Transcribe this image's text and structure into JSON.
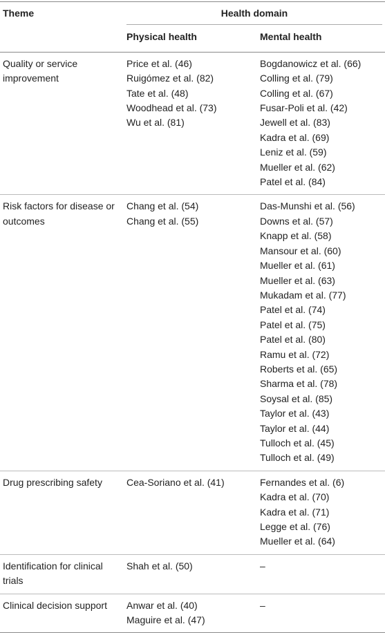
{
  "header": {
    "theme": "Theme",
    "domain": "Health domain",
    "columns": [
      "Physical health",
      "Mental health"
    ]
  },
  "rows": [
    {
      "theme": "Quality or service improvement",
      "physical": [
        "Price et al. (46)",
        "Ruigómez et al. (82)",
        "Tate et al. (48)",
        "Woodhead et al. (73)",
        "Wu et al. (81)"
      ],
      "mental": [
        "Bogdanowicz et al. (66)",
        "Colling et al. (79)",
        "Colling et al. (67)",
        "Fusar-Poli et al. (42)",
        "Jewell et al. (83)",
        "Kadra et al. (69)",
        "Leniz et al. (59)",
        "Mueller et al. (62)",
        "Patel et al. (84)"
      ]
    },
    {
      "theme": "Risk factors for disease or outcomes",
      "physical": [
        "Chang et al. (54)",
        "Chang et al. (55)"
      ],
      "mental": [
        "Das-Munshi et al. (56)",
        "Downs et al. (57)",
        "Knapp et al. (58)",
        "Mansour et al. (60)",
        "Mueller et al. (61)",
        "Mueller et al. (63)",
        "Mukadam et al. (77)",
        "Patel et al. (74)",
        "Patel et al. (75)",
        "Patel et al. (80)",
        "Ramu et al. (72)",
        "Roberts et al. (65)",
        "Sharma et al. (78)",
        "Soysal et al. (85)",
        "Taylor et al. (43)",
        "Taylor et al. (44)",
        "Tulloch et al. (45)",
        "Tulloch et al. (49)"
      ]
    },
    {
      "theme": "Drug prescribing safety",
      "physical": [
        "Cea-Soriano et al. (41)"
      ],
      "mental": [
        "Fernandes et al. (6)",
        "Kadra et al. (70)",
        "Kadra et al. (71)",
        "Legge et al. (76)",
        "Mueller et al. (64)"
      ]
    },
    {
      "theme": "Identification for clinical trials",
      "physical": [
        "Shah et al. (50)"
      ],
      "mental": [
        "–"
      ]
    },
    {
      "theme": "Clinical decision support",
      "physical": [
        "Anwar et al. (40)",
        "Maguire et al. (47)"
      ],
      "mental": [
        "–"
      ]
    }
  ]
}
